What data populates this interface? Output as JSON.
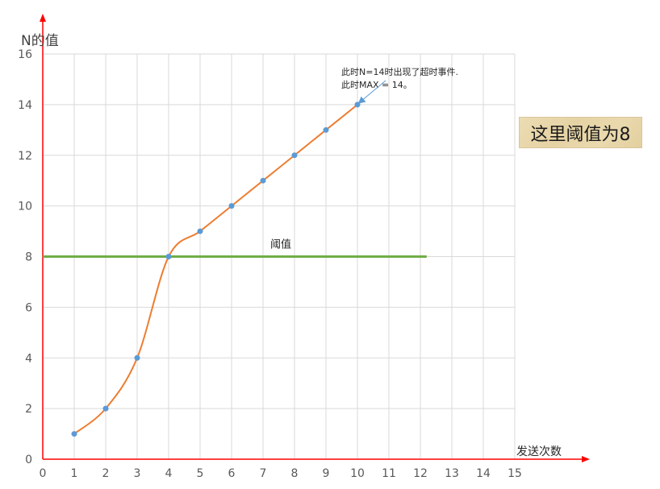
{
  "chart_data": {
    "type": "line",
    "ylabel": "N的值",
    "xlabel": "发送次数",
    "xlim": [
      0,
      15
    ],
    "ylim": [
      0,
      16
    ],
    "x_ticks": [
      0,
      1,
      2,
      3,
      4,
      5,
      6,
      7,
      8,
      9,
      10,
      11,
      12,
      13,
      14,
      15
    ],
    "y_ticks": [
      0,
      2,
      4,
      6,
      8,
      10,
      12,
      14,
      16
    ],
    "grid": true,
    "series": [
      {
        "x": [
          1,
          2,
          3,
          4,
          5,
          6,
          7,
          8,
          9,
          10
        ],
        "y": [
          1,
          2,
          4,
          8,
          9,
          10,
          11,
          12,
          13,
          14
        ],
        "color": "#ed7d31",
        "marker_color": "#5b9bd5"
      }
    ],
    "threshold": {
      "value": 8,
      "x_end": 12.2,
      "label": "阈值",
      "color": "#70ad47"
    },
    "annotation": {
      "lines": [
        "此时N=14时出现了超时事件.",
        "此时MAX = 14。"
      ],
      "point": [
        10,
        14
      ],
      "arrow_color": "#5b9bd5"
    }
  },
  "note": {
    "text": "这里阈值为8"
  },
  "colors": {
    "axis": "#ff0000",
    "grid": "#d9d9d9"
  }
}
